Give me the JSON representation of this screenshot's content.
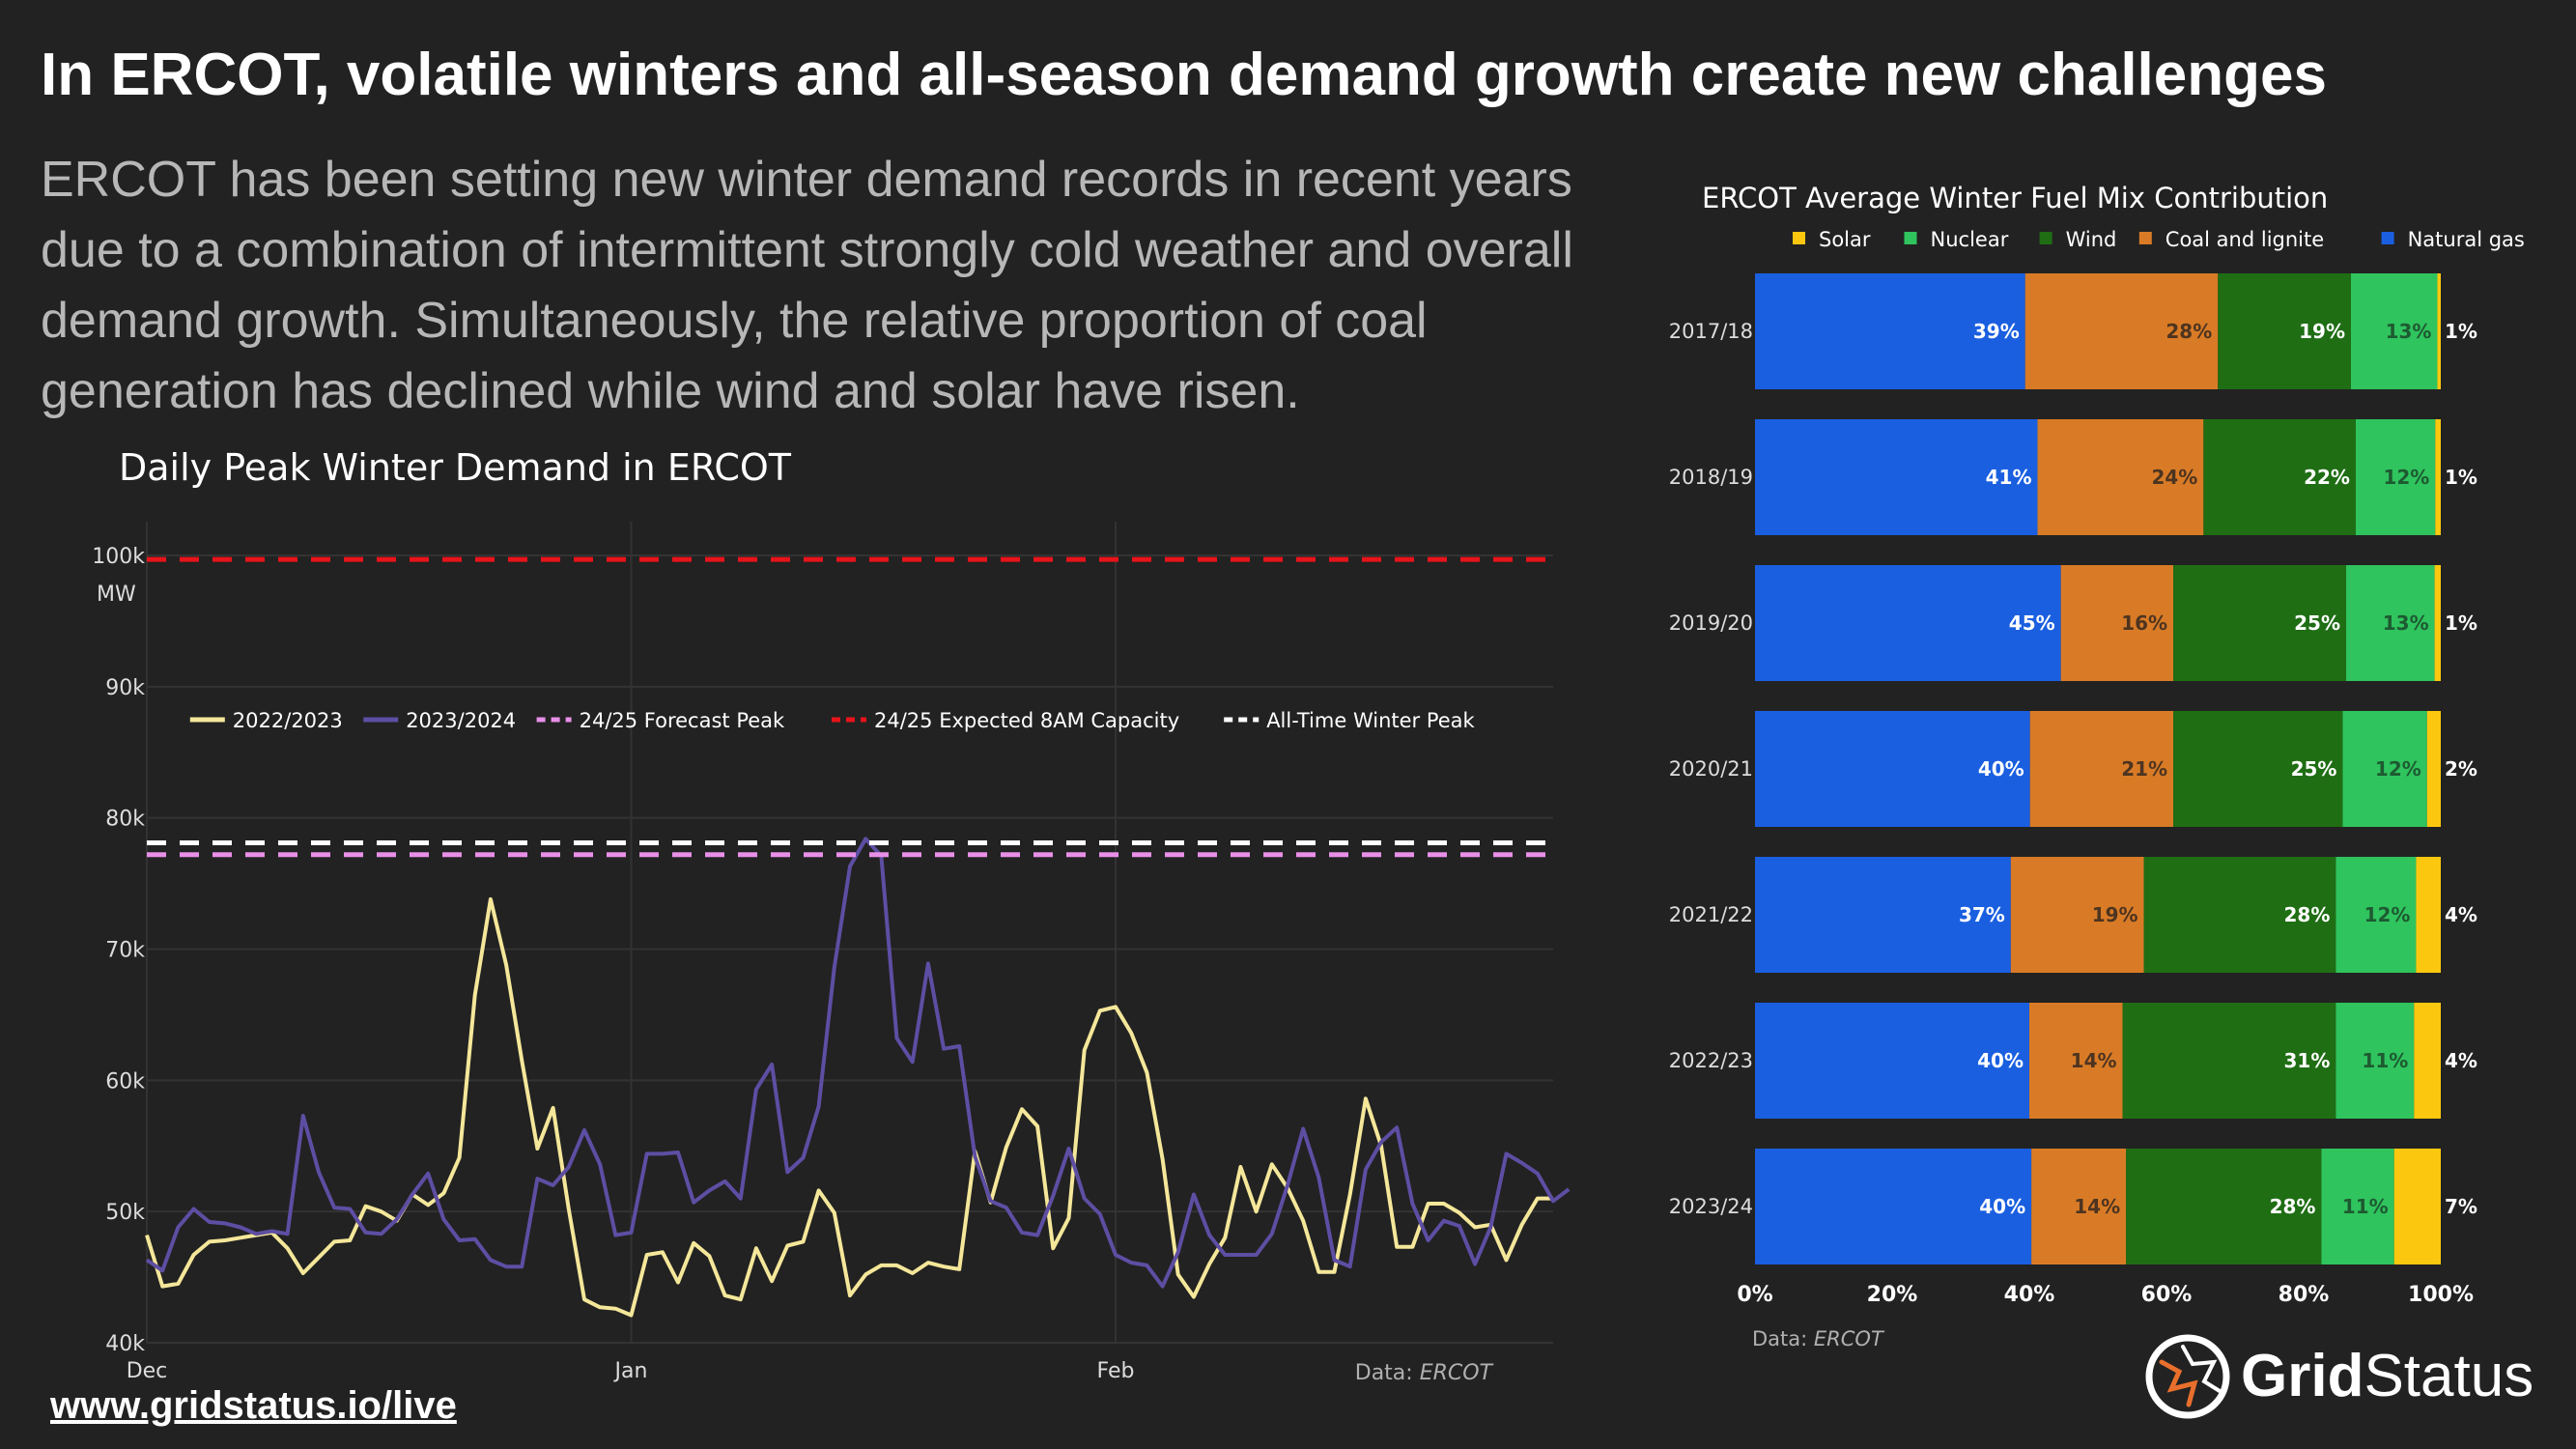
{
  "header": {
    "title": "In ERCOT, volatile winters and all-season demand growth create new challenges",
    "subtitle": "ERCOT has been setting new winter demand records in recent years due to a combination of intermittent strongly cold weather and overall demand growth. Simultaneously, the relative proportion of coal generation has declined while wind and solar have risen."
  },
  "footer": {
    "link": "www.gridstatus.io/live",
    "logo_word1": "Grid",
    "logo_word2": "Status"
  },
  "colors": {
    "s2022": "#f5e79a",
    "s2023": "#5e4ea3",
    "forecast": "#e88fe8",
    "capacity": "#e8131b",
    "alltime": "#ffffff",
    "solar": "#fcc80f",
    "nuclear": "#2fc45e",
    "wind": "#1f6e14",
    "coal": "#d97b26",
    "gas": "#1a5fe0"
  },
  "chart_data": [
    {
      "type": "line",
      "title": "Daily Peak Winter Demand in ERCOT",
      "ylabel": "MW",
      "ylim": [
        40000,
        100000
      ],
      "yticks": [
        40000,
        50000,
        60000,
        70000,
        80000,
        90000,
        100000
      ],
      "ytick_labels": [
        "40k",
        "50k",
        "60k",
        "70k",
        "80k",
        "90k",
        "100k"
      ],
      "x_start": "Dec 1",
      "x_days": 90,
      "xticks": [
        {
          "day": 0,
          "label": "Dec"
        },
        {
          "day": 31,
          "label": "Jan"
        },
        {
          "day": 62,
          "label": "Feb"
        }
      ],
      "source_label": "Data: ",
      "source": "ERCOT",
      "series": [
        {
          "name": "2022/2023",
          "style": "solid",
          "values": [
            48200,
            44300,
            44500,
            46700,
            47700,
            47800,
            48000,
            48200,
            48400,
            47200,
            45300,
            46500,
            47700,
            47800,
            50400,
            50000,
            49300,
            51300,
            50500,
            51400,
            54100,
            66500,
            73800,
            68800,
            61500,
            54800,
            57900,
            50200,
            43300,
            42700,
            42600,
            42100,
            46700,
            46900,
            44600,
            47600,
            46600,
            43600,
            43300,
            47200,
            44700,
            47400,
            47700,
            51600,
            49900,
            43600,
            45200,
            45900,
            45900,
            45300,
            46100,
            45800,
            45600,
            54600,
            50700,
            54900,
            57800,
            56500,
            47200,
            49500,
            62300,
            65300,
            65600,
            63600,
            60600,
            54000,
            45200,
            43500,
            46000,
            48000,
            53400,
            50000,
            53600,
            51800,
            49300,
            45400,
            45400,
            51300,
            58600,
            55000,
            47300,
            47300,
            50600,
            50600,
            49900,
            48800,
            49000,
            46300,
            49000,
            51000,
            51000
          ]
        },
        {
          "name": "2023/2024",
          "style": "solid",
          "values": [
            46300,
            45500,
            48800,
            50200,
            49200,
            49100,
            48800,
            48300,
            48500,
            48300,
            57300,
            53000,
            50300,
            50200,
            48400,
            48300,
            49400,
            51300,
            52900,
            49400,
            47800,
            47900,
            46300,
            45800,
            45800,
            52500,
            52000,
            53400,
            56200,
            53600,
            48200,
            48400,
            54400,
            54400,
            54500,
            50700,
            51600,
            52300,
            51000,
            59300,
            61200,
            53000,
            54100,
            58000,
            68600,
            76300,
            78400,
            77100,
            63200,
            61400,
            68900,
            62400,
            62600,
            54200,
            50800,
            50300,
            48400,
            48200,
            51200,
            54800,
            51000,
            49800,
            46700,
            46100,
            45900,
            44300,
            46900,
            51300,
            48200,
            46700,
            46700,
            46700,
            48300,
            52000,
            56300,
            52600,
            46300,
            45800,
            53200,
            55300,
            56400,
            50600,
            47800,
            49300,
            48900,
            46000,
            48800,
            54400,
            53700,
            52900,
            50800,
            51700
          ]
        },
        {
          "name": "24/25 Forecast Peak",
          "style": "dash",
          "value": 77200
        },
        {
          "name": "24/25 Expected 8AM Capacity",
          "style": "dash",
          "value": 99700
        },
        {
          "name": "All-Time Winter Peak",
          "style": "dash",
          "value": 78100
        }
      ]
    },
    {
      "type": "bar",
      "orientation": "horizontal",
      "stacked": true,
      "title": "ERCOT Average Winter Fuel Mix Contribution",
      "xlim": [
        0,
        100
      ],
      "xticks": [
        0,
        20,
        40,
        60,
        80,
        100
      ],
      "xtick_labels": [
        "0%",
        "20%",
        "40%",
        "60%",
        "80%",
        "100%"
      ],
      "legend": [
        "Solar",
        "Nuclear",
        "Wind",
        "Coal and lignite",
        "Natural gas"
      ],
      "source_label": "Data: ",
      "source": "ERCOT",
      "categories": [
        "2017/18",
        "2018/19",
        "2019/20",
        "2020/21",
        "2021/22",
        "2022/23",
        "2023/24"
      ],
      "series": [
        {
          "name": "Natural gas",
          "values": [
            39.4,
            41.2,
            44.6,
            40.1,
            37.3,
            40.0,
            40.3
          ]
        },
        {
          "name": "Coal and lignite",
          "values": [
            28.1,
            24.2,
            16.4,
            20.9,
            19.4,
            13.6,
            13.8
          ]
        },
        {
          "name": "Wind",
          "values": [
            19.4,
            22.2,
            25.2,
            24.7,
            28.0,
            31.1,
            28.5
          ]
        },
        {
          "name": "Nuclear",
          "values": [
            12.6,
            11.6,
            12.9,
            12.3,
            11.7,
            11.4,
            10.6
          ]
        },
        {
          "name": "Solar",
          "values": [
            0.5,
            0.8,
            0.9,
            2.0,
            3.6,
            3.9,
            6.8
          ]
        }
      ],
      "labels": [
        [
          "39%",
          "28%",
          "19%",
          "13%",
          "1%"
        ],
        [
          "41%",
          "24%",
          "22%",
          "12%",
          "1%"
        ],
        [
          "45%",
          "16%",
          "25%",
          "13%",
          "1%"
        ],
        [
          "40%",
          "21%",
          "25%",
          "12%",
          "2%"
        ],
        [
          "37%",
          "19%",
          "28%",
          "12%",
          "4%"
        ],
        [
          "40%",
          "14%",
          "31%",
          "11%",
          "4%"
        ],
        [
          "40%",
          "14%",
          "28%",
          "11%",
          "7%"
        ]
      ]
    }
  ]
}
